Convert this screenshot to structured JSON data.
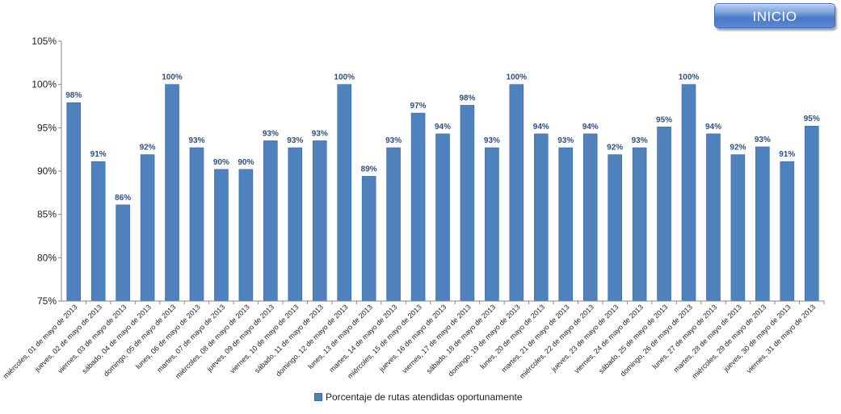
{
  "inicio_button": {
    "label": "INICIO"
  },
  "legend": {
    "label": "Porcentaje de rutas atendidas oportunamente"
  },
  "colors": {
    "bar": "#4f81bd",
    "bar_edge": "#3a68a3",
    "label": "#2f4f80",
    "axis": "#868686"
  },
  "chart_data": {
    "type": "bar",
    "title": "",
    "xlabel": "",
    "ylabel": "",
    "ylim": [
      75,
      105
    ],
    "y_ticks": [
      75,
      80,
      85,
      90,
      95,
      100,
      105
    ],
    "y_tick_labels": [
      "75%",
      "80%",
      "85%",
      "90%",
      "95%",
      "100%",
      "105%"
    ],
    "grid": false,
    "legend_position": "bottom",
    "categories": [
      "miércoles, 01 de mayo de 2013",
      "jueves, 02 de mayo de 2013",
      "viernes, 03 de mayo de 2013",
      "sábado, 04 de mayo de 2013",
      "domingo, 05 de mayo de 2013",
      "lunes, 06 de mayo de 2013",
      "martes, 07 de mayo de 2013",
      "miércoles, 08 de mayo de 2013",
      "jueves, 09 de mayo de 2013",
      "viernes, 10 de mayo de 2013",
      "sábado, 11 de mayo de 2013",
      "domingo, 12 de mayo de 2013",
      "lunes, 13 de mayo de 2013",
      "martes, 14 de mayo de 2013",
      "miércoles, 15 de mayo de 2013",
      "jueves, 16 de mayo de 2013",
      "viernes, 17 de mayo de 2013",
      "sábado, 18 de mayo de 2013",
      "domingo, 19 de mayo de 2013",
      "lunes, 20 de mayo de 2013",
      "martes, 21 de mayo de 2013",
      "miércoles, 22 de mayo de 2013",
      "jueves, 23 de mayo de 2013",
      "viernes, 24 de mayo de 2013",
      "sábado, 25 de mayo de 2013",
      "domingo, 26 de mayo de 2013",
      "lunes, 27 de mayo de 2013",
      "martes, 28 de mayo de 2013",
      "miércoles, 29 de mayo de 2013",
      "jueves, 30 de mayo de 2013",
      "viernes, 31 de mayo de 2013"
    ],
    "series": [
      {
        "name": "Porcentaje de rutas atendidas oportunamente",
        "values": [
          97.9,
          91.1,
          86.1,
          91.9,
          100,
          92.7,
          90.2,
          90.2,
          93.5,
          92.7,
          93.5,
          100,
          89.4,
          92.7,
          96.7,
          94.3,
          97.6,
          92.7,
          100,
          94.3,
          92.7,
          94.3,
          91.9,
          92.7,
          95.1,
          100,
          94.3,
          91.9,
          92.8,
          91.1,
          95.2
        ],
        "data_labels": [
          "98%",
          "91%",
          "86%",
          "92%",
          "100%",
          "93%",
          "90%",
          "90%",
          "93%",
          "93%",
          "93%",
          "100%",
          "89%",
          "93%",
          "97%",
          "94%",
          "98%",
          "93%",
          "100%",
          "94%",
          "93%",
          "94%",
          "92%",
          "93%",
          "95%",
          "100%",
          "94%",
          "92%",
          "93%",
          "91%",
          "95%"
        ]
      }
    ]
  }
}
